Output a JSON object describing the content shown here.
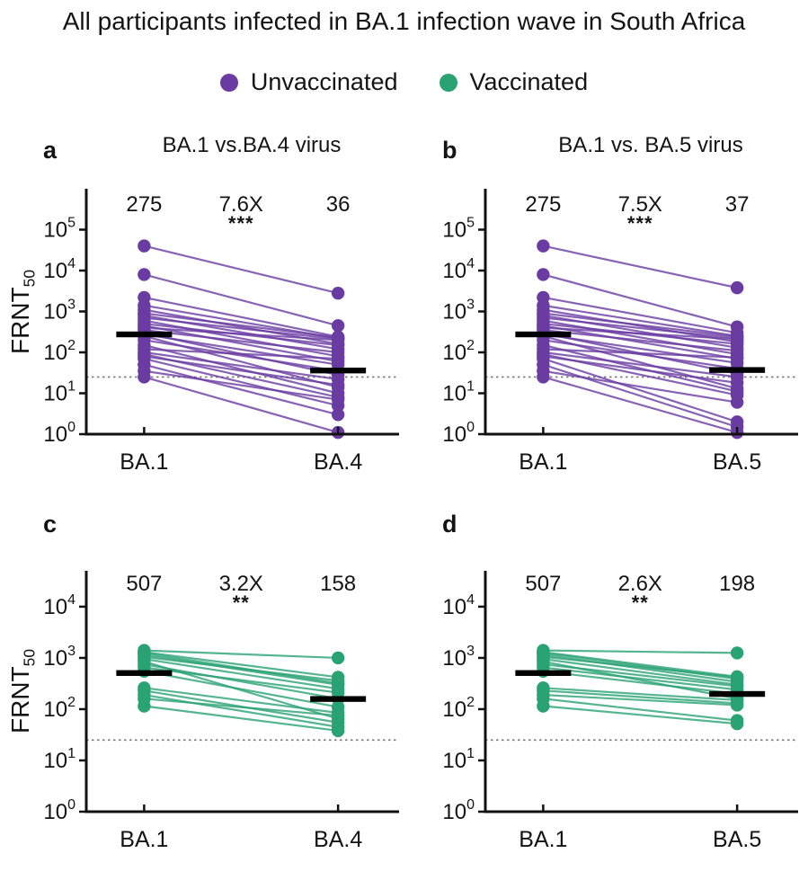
{
  "title": "All participants infected in BA.1 infection wave in South Africa",
  "legend": [
    {
      "label": "Unvaccinated",
      "color": "#6A3CA2"
    },
    {
      "label": "Vaccinated",
      "color": "#29A274"
    }
  ],
  "ylabel": {
    "base": "FRNT",
    "sub": "50"
  },
  "colors": {
    "axis": "#111111",
    "mean_bar": "#000000",
    "lod_line": "#777777"
  },
  "limit_of_detection": 25,
  "chart_data": [
    {
      "panel": "a",
      "type": "line",
      "title": "BA.1 vs.BA.4 virus",
      "group": "Unvaccinated",
      "color": "#6A3CA2",
      "categories": [
        "BA.1",
        "BA.4"
      ],
      "gmt": [
        275,
        36
      ],
      "fold_change": "7.6X",
      "significance": "***",
      "ylabel": "FRNT50",
      "ylim_log": [
        0,
        6
      ],
      "yticks_exp": [
        0,
        1,
        2,
        3,
        4,
        5
      ],
      "pairs": [
        [
          40000,
          2800
        ],
        [
          8000,
          450
        ],
        [
          2200,
          240
        ],
        [
          1400,
          220
        ],
        [
          1100,
          160
        ],
        [
          900,
          230
        ],
        [
          800,
          120
        ],
        [
          700,
          210
        ],
        [
          600,
          80
        ],
        [
          500,
          150
        ],
        [
          450,
          60
        ],
        [
          400,
          200
        ],
        [
          350,
          100
        ],
        [
          300,
          28
        ],
        [
          275,
          50
        ],
        [
          250,
          14
        ],
        [
          200,
          35
        ],
        [
          150,
          10
        ],
        [
          120,
          70
        ],
        [
          100,
          22
        ],
        [
          90,
          8
        ],
        [
          80,
          16
        ],
        [
          70,
          5
        ],
        [
          50,
          3
        ],
        [
          35,
          7
        ],
        [
          25,
          1.1
        ]
      ]
    },
    {
      "panel": "b",
      "type": "line",
      "title": "BA.1 vs. BA.5 virus",
      "group": "Unvaccinated",
      "color": "#6A3CA2",
      "categories": [
        "BA.1",
        "BA.5"
      ],
      "gmt": [
        275,
        37
      ],
      "fold_change": "7.5X",
      "significance": "***",
      "ylabel": "FRNT50",
      "ylim_log": [
        0,
        6
      ],
      "yticks_exp": [
        0,
        1,
        2,
        3,
        4,
        5
      ],
      "pairs": [
        [
          40000,
          3800
        ],
        [
          8000,
          420
        ],
        [
          2200,
          300
        ],
        [
          1400,
          250
        ],
        [
          1100,
          180
        ],
        [
          900,
          240
        ],
        [
          800,
          130
        ],
        [
          700,
          220
        ],
        [
          600,
          90
        ],
        [
          500,
          160
        ],
        [
          450,
          70
        ],
        [
          400,
          210
        ],
        [
          350,
          110
        ],
        [
          300,
          30
        ],
        [
          275,
          55
        ],
        [
          250,
          13
        ],
        [
          200,
          40
        ],
        [
          150,
          11
        ],
        [
          120,
          75
        ],
        [
          100,
          25
        ],
        [
          90,
          9
        ],
        [
          80,
          18
        ],
        [
          70,
          2
        ],
        [
          50,
          1.5
        ],
        [
          35,
          6
        ],
        [
          25,
          1.1
        ]
      ]
    },
    {
      "panel": "c",
      "type": "line",
      "title": "",
      "group": "Vaccinated",
      "color": "#29A274",
      "categories": [
        "BA.1",
        "BA.4"
      ],
      "gmt": [
        507,
        158
      ],
      "fold_change": "3.2X",
      "significance": "**",
      "ylabel": "FRNT50",
      "ylim_log": [
        0,
        4.7
      ],
      "yticks_exp": [
        0,
        1,
        2,
        3,
        4
      ],
      "pairs": [
        [
          1400,
          1000
        ],
        [
          1300,
          420
        ],
        [
          1250,
          320
        ],
        [
          1150,
          300
        ],
        [
          1050,
          360
        ],
        [
          950,
          250
        ],
        [
          850,
          65
        ],
        [
          750,
          160
        ],
        [
          650,
          210
        ],
        [
          550,
          110
        ],
        [
          260,
          85
        ],
        [
          230,
          55
        ],
        [
          190,
          45
        ],
        [
          160,
          75
        ],
        [
          115,
          38
        ]
      ]
    },
    {
      "panel": "d",
      "type": "line",
      "title": "",
      "group": "Vaccinated",
      "color": "#29A274",
      "categories": [
        "BA.1",
        "BA.5"
      ],
      "gmt": [
        507,
        198
      ],
      "fold_change": "2.6X",
      "significance": "**",
      "ylabel": "FRNT50",
      "ylim_log": [
        0,
        4.7
      ],
      "yticks_exp": [
        0,
        1,
        2,
        3,
        4
      ],
      "pairs": [
        [
          1400,
          1250
        ],
        [
          1300,
          430
        ],
        [
          1250,
          390
        ],
        [
          1150,
          340
        ],
        [
          1050,
          420
        ],
        [
          950,
          300
        ],
        [
          850,
          160
        ],
        [
          750,
          280
        ],
        [
          650,
          240
        ],
        [
          550,
          200
        ],
        [
          260,
          150
        ],
        [
          230,
          130
        ],
        [
          190,
          120
        ],
        [
          160,
          60
        ],
        [
          115,
          52
        ]
      ]
    }
  ]
}
